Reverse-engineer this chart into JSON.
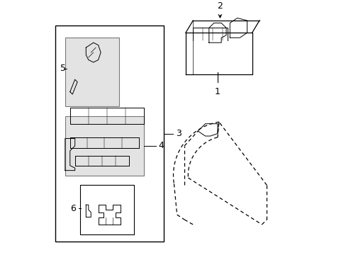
{
  "background_color": "#ffffff",
  "line_color": "#000000",
  "gray_box_color": "#c8c8c8",
  "fig_width": 4.89,
  "fig_height": 3.6,
  "dpi": 100
}
